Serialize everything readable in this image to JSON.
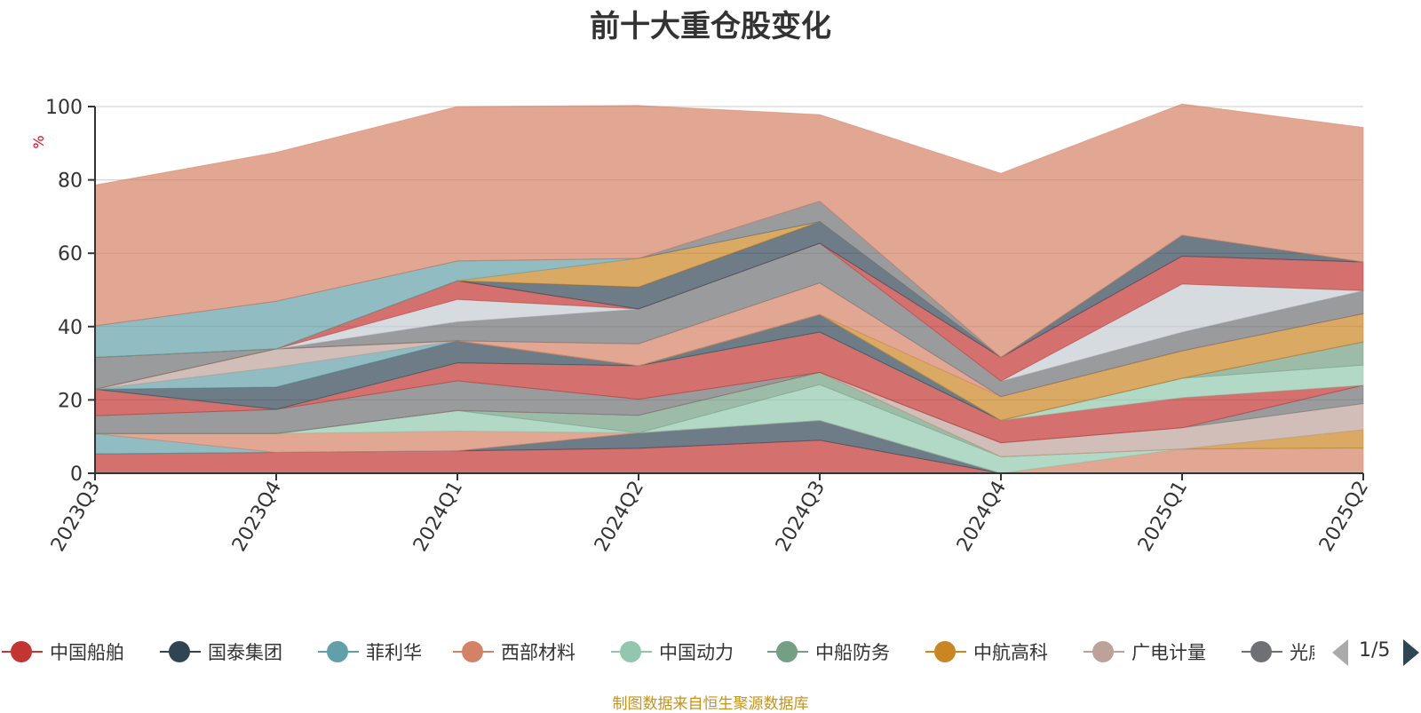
{
  "title": "前十大重仓股变化",
  "footer_note": "制图数据来自恒生聚源数据库",
  "pager": {
    "text": "1/5"
  },
  "chart_data": {
    "type": "area",
    "stacked": true,
    "title": "前十大重仓股变化",
    "ylabel": "%",
    "xlabel": "",
    "ylim": [
      0,
      100
    ],
    "yticks": [
      0,
      20,
      40,
      60,
      80,
      100
    ],
    "grid": true,
    "legend_position": "bottom",
    "categories": [
      "2023Q3",
      "2023Q4",
      "2024Q1",
      "2024Q2",
      "2024Q3",
      "2024Q4",
      "2025Q1",
      "2025Q2"
    ],
    "series": [
      {
        "name": "中国船舶",
        "color": "#c23531",
        "values": [
          5.3,
          5.7,
          6.1,
          6.8,
          9.0,
          0.0,
          0.0,
          0.0
        ]
      },
      {
        "name": "国泰集团",
        "color": "#2f4554",
        "values": [
          0.0,
          0.0,
          0.0,
          4.2,
          5.4,
          0.0,
          0.0,
          0.0
        ]
      },
      {
        "name": "菲利华",
        "color": "#61a0a8",
        "values": [
          5.5,
          0.0,
          0.0,
          0.0,
          0.0,
          0.0,
          0.0,
          0.0
        ]
      },
      {
        "name": "西部材料",
        "color": "#d48265",
        "values": [
          0.0,
          5.1,
          5.4,
          0.0,
          0.0,
          0.0,
          6.6,
          6.9
        ]
      },
      {
        "name": "中国动力",
        "color": "#91c7ae",
        "values": [
          0.0,
          0.0,
          5.6,
          0.0,
          9.8,
          4.5,
          0.0,
          0.0
        ]
      },
      {
        "name": "中船防务",
        "color": "#749f83",
        "values": [
          0.0,
          0.0,
          0.0,
          4.8,
          3.3,
          0.0,
          0.0,
          0.0
        ]
      },
      {
        "name": "中航高科",
        "color": "#ca8622",
        "values": [
          0.0,
          0.0,
          0.0,
          0.0,
          0.0,
          0.0,
          0.0,
          5.0
        ]
      },
      {
        "name": "广电计量",
        "color": "#bda29a",
        "values": [
          0.0,
          0.0,
          0.0,
          0.0,
          0.0,
          3.8,
          5.8,
          7.1
        ]
      },
      {
        "name": "光威复材",
        "color": "#6e7074",
        "values": [
          4.9,
          6.6,
          8.1,
          4.4,
          0.0,
          0.0,
          0.0,
          5.0
        ]
      },
      {
        "name": "",
        "color": "#c23531",
        "values": [
          7.2,
          0.0,
          4.9,
          9.1,
          11.0,
          6.1,
          8.2,
          0.0
        ]
      },
      {
        "name": "",
        "color": "#91c7ae",
        "values": [
          0.0,
          0.0,
          0.0,
          0.0,
          0.0,
          0.0,
          5.3,
          5.5
        ]
      },
      {
        "name": "",
        "color": "#749f83",
        "values": [
          0.0,
          0.0,
          0.0,
          0.0,
          0.0,
          0.0,
          0.0,
          6.3
        ]
      },
      {
        "name": "",
        "color": "#2f4554",
        "values": [
          0.0,
          6.1,
          6.0,
          0.0,
          4.8,
          0.0,
          0.0,
          0.0
        ]
      },
      {
        "name": "",
        "color": "#61a0a8",
        "values": [
          0.0,
          5.4,
          0.0,
          0.0,
          0.0,
          0.0,
          0.0,
          0.0
        ]
      },
      {
        "name": "",
        "color": "#bda29a",
        "values": [
          0.0,
          5.0,
          0.0,
          0.0,
          0.0,
          0.0,
          0.0,
          0.0
        ]
      },
      {
        "name": "",
        "color": "#ca8622",
        "values": [
          0.0,
          0.0,
          0.0,
          0.0,
          0.0,
          6.5,
          7.5,
          7.7
        ]
      },
      {
        "name": "",
        "color": "#d48265",
        "values": [
          0.0,
          0.0,
          0.0,
          6.0,
          8.6,
          0.0,
          0.0,
          0.0
        ]
      },
      {
        "name": "",
        "color": "#6e7074",
        "values": [
          8.7,
          0.0,
          5.2,
          9.5,
          10.8,
          4.2,
          5.1,
          6.3
        ]
      },
      {
        "name": "",
        "color": "#c4ccd3",
        "values": [
          0.0,
          0.0,
          6.1,
          0.0,
          0.0,
          0.0,
          13.1,
          0.0
        ]
      },
      {
        "name": "",
        "color": "#c23531",
        "values": [
          0.0,
          0.0,
          5.1,
          0.0,
          0.0,
          6.5,
          7.6,
          7.8
        ]
      },
      {
        "name": "",
        "color": "#2f4554",
        "values": [
          0.0,
          0.0,
          0.0,
          6.0,
          5.9,
          0.0,
          5.7,
          0.0
        ]
      },
      {
        "name": "",
        "color": "#ca8622",
        "values": [
          0.0,
          0.0,
          0.0,
          7.8,
          0.0,
          0.0,
          0.0,
          0.0
        ]
      },
      {
        "name": "",
        "color": "#61a0a8",
        "values": [
          8.6,
          13.0,
          5.4,
          0.0,
          0.0,
          0.0,
          0.0,
          0.0
        ]
      },
      {
        "name": "",
        "color": "#6e7074",
        "values": [
          0.0,
          0.0,
          0.0,
          0.0,
          5.6,
          0.0,
          0.0,
          0.0
        ]
      },
      {
        "name": "",
        "color": "#d48265",
        "values": [
          38.4,
          40.6,
          42.1,
          41.7,
          23.6,
          50.2,
          35.8,
          36.7
        ]
      }
    ]
  }
}
